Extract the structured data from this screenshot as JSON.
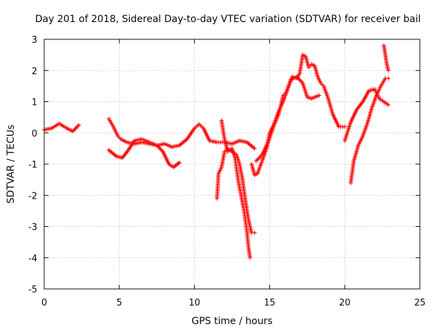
{
  "chart_data": {
    "type": "scatter",
    "title": "Day 201 of 2018, Sidereal Day-to-day VTEC variation (SDTVAR) for receiver bail",
    "xlabel": "GPS time / hours",
    "ylabel": "SDTVAR / TECUs",
    "xlim": [
      0,
      25
    ],
    "ylim": [
      -5,
      3
    ],
    "x_ticks": [
      "0",
      "5",
      "10",
      "15",
      "20",
      "25"
    ],
    "y_ticks": [
      "3",
      "2",
      "1",
      "0",
      "-1",
      "-2",
      "-3",
      "-4",
      "-5"
    ],
    "grid": true,
    "marker": "+",
    "color": "#ff0000",
    "series": [
      {
        "x": [
          0.0,
          0.5,
          1.0,
          1.5,
          1.9,
          2.3
        ],
        "y": [
          0.1,
          0.15,
          0.3,
          0.15,
          0.05,
          0.25
        ]
      },
      {
        "x": [
          4.3,
          4.6,
          4.9,
          5.1,
          5.5,
          6.0,
          6.5,
          7.0,
          7.5,
          8.0,
          8.5,
          9.0,
          9.5,
          10.0,
          10.3,
          10.6,
          11.0,
          11.5,
          12.0,
          12.5,
          13.0,
          13.5,
          14.0
        ],
        "y": [
          0.45,
          0.2,
          -0.1,
          -0.2,
          -0.3,
          -0.35,
          -0.3,
          -0.35,
          -0.4,
          -0.35,
          -0.45,
          -0.4,
          -0.2,
          0.15,
          0.28,
          0.15,
          -0.25,
          -0.3,
          -0.3,
          -0.35,
          -0.25,
          -0.3,
          -0.5
        ]
      },
      {
        "x": [
          4.3,
          4.8,
          5.2,
          5.6,
          6.0,
          6.5,
          7.0,
          7.5,
          7.9,
          8.3,
          8.6,
          9.0
        ],
        "y": [
          -0.55,
          -0.75,
          -0.8,
          -0.55,
          -0.25,
          -0.2,
          -0.3,
          -0.4,
          -0.6,
          -1.0,
          -1.1,
          -0.95
        ]
      },
      {
        "x": [
          11.5,
          11.6,
          11.8,
          12.0,
          12.2,
          12.5,
          12.8,
          13.0,
          13.2,
          13.4,
          13.6,
          13.8,
          14.0
        ],
        "y": [
          -2.1,
          -1.3,
          -1.1,
          -0.6,
          -0.5,
          -0.6,
          -0.7,
          -1.0,
          -1.5,
          -2.2,
          -2.8,
          -3.2,
          -3.2
        ]
      },
      {
        "x": [
          11.8,
          12.0,
          12.2,
          12.5,
          12.7,
          12.9,
          13.1,
          13.3,
          13.5,
          13.6,
          13.7
        ],
        "y": [
          0.4,
          -0.2,
          -0.6,
          -0.5,
          -0.8,
          -1.5,
          -2.0,
          -2.5,
          -3.2,
          -3.7,
          -4.0
        ]
      },
      {
        "x": [
          13.8,
          14.0,
          14.2,
          14.5,
          14.8,
          15.0,
          15.3,
          15.6,
          15.9,
          16.2,
          16.5,
          16.8,
          17.0,
          17.2,
          17.4,
          17.6,
          17.8,
          18.0,
          18.2,
          18.4,
          18.6,
          18.9,
          19.2,
          19.6,
          20.0
        ],
        "y": [
          -1.0,
          -1.35,
          -1.3,
          -0.9,
          -0.5,
          0.0,
          0.3,
          0.7,
          1.0,
          1.4,
          1.8,
          1.75,
          1.9,
          2.5,
          2.45,
          2.1,
          2.2,
          2.15,
          1.8,
          1.6,
          1.5,
          1.1,
          0.6,
          0.2,
          0.2
        ]
      },
      {
        "x": [
          14.1,
          14.5,
          14.9,
          15.3,
          15.6,
          15.9,
          16.1,
          16.4,
          16.8,
          17.2,
          17.5,
          17.8,
          18.0,
          18.3
        ],
        "y": [
          -0.9,
          -0.7,
          -0.3,
          0.25,
          0.6,
          1.2,
          1.3,
          1.7,
          1.8,
          1.6,
          1.15,
          1.1,
          1.15,
          1.2
        ]
      },
      {
        "x": [
          20.0,
          20.4,
          20.8,
          21.2,
          21.6,
          22.0,
          22.3,
          22.6,
          22.9
        ],
        "y": [
          -0.25,
          0.35,
          0.75,
          1.0,
          1.35,
          1.4,
          1.1,
          1.0,
          0.9
        ]
      },
      {
        "x": [
          20.4,
          20.6,
          20.9,
          21.2,
          21.5,
          21.8,
          22.1,
          22.4,
          22.7,
          22.9
        ],
        "y": [
          -1.6,
          -0.9,
          -0.4,
          -0.1,
          0.3,
          0.8,
          1.2,
          1.5,
          1.75,
          1.75
        ]
      },
      {
        "x": [
          22.6,
          22.7,
          22.8,
          22.9
        ],
        "y": [
          2.8,
          2.5,
          2.2,
          2.0
        ]
      }
    ]
  }
}
